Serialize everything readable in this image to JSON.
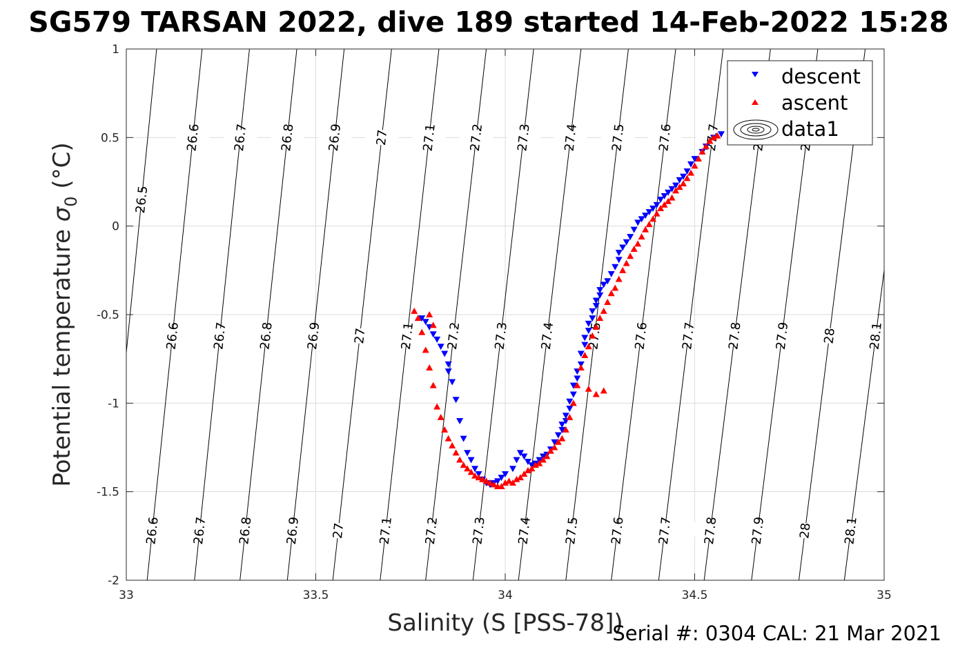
{
  "title": "SG579 TARSAN 2022, dive 189 started 14-Feb-2022 15:28",
  "footer": "Serial #: 0304  CAL: 21 Mar 2021",
  "chart_data": {
    "type": "scatter",
    "xlabel": "Salinity (S [PSS-78])",
    "ylabel_main": "Potential temperature ",
    "ylabel_sigma": "σ",
    "ylabel_sub": "0",
    "ylabel_unit": " (°C)",
    "xlim": [
      33,
      35
    ],
    "ylim": [
      -2,
      1
    ],
    "x_ticks": [
      {
        "value": 33,
        "label": "33"
      },
      {
        "value": 33.5,
        "label": "33.5"
      },
      {
        "value": 34,
        "label": "34"
      },
      {
        "value": 34.5,
        "label": "34.5"
      },
      {
        "value": 35,
        "label": "35"
      }
    ],
    "y_ticks": [
      {
        "value": -2,
        "label": "-2"
      },
      {
        "value": -1.5,
        "label": "-1.5"
      },
      {
        "value": -1,
        "label": "-1"
      },
      {
        "value": -0.5,
        "label": "-0.5"
      },
      {
        "value": 0,
        "label": "0"
      },
      {
        "value": 0.5,
        "label": "0.5"
      },
      {
        "value": 1,
        "label": "1"
      }
    ],
    "grid": true,
    "legend_position": "top-right",
    "legend": [
      {
        "name": "descent",
        "marker": "triangle-down",
        "color": "#0000ff"
      },
      {
        "name": "ascent",
        "marker": "triangle-up",
        "color": "#ff0000"
      },
      {
        "name": "data1",
        "marker": "contour-ellipse",
        "color": "#000000"
      }
    ],
    "density_contours": {
      "levels": [
        "26.5",
        "26.6",
        "26.7",
        "26.8",
        "26.9",
        "27",
        "27.1",
        "27.2",
        "27.3",
        "27.4",
        "27.5",
        "27.6",
        "27.7",
        "27.8",
        "27.9",
        "28",
        "28.1"
      ],
      "lines": [
        {
          "label": "26.5",
          "s_bottom": 32.94,
          "s_top": 33.08
        },
        {
          "label": "26.6",
          "s_bottom": 33.055,
          "s_top": 33.2
        },
        {
          "label": "26.7",
          "s_bottom": 33.18,
          "s_top": 33.325
        },
        {
          "label": "26.8",
          "s_bottom": 33.3,
          "s_top": 33.45
        },
        {
          "label": "26.9",
          "s_bottom": 33.425,
          "s_top": 33.575
        },
        {
          "label": "27",
          "s_bottom": 33.545,
          "s_top": 33.7
        },
        {
          "label": "27.1",
          "s_bottom": 33.67,
          "s_top": 33.825
        },
        {
          "label": "27.2",
          "s_bottom": 33.79,
          "s_top": 33.95
        },
        {
          "label": "27.3",
          "s_bottom": 33.915,
          "s_top": 34.075
        },
        {
          "label": "27.4",
          "s_bottom": 34.035,
          "s_top": 34.2
        },
        {
          "label": "27.5",
          "s_bottom": 34.16,
          "s_top": 34.325
        },
        {
          "label": "27.6",
          "s_bottom": 34.28,
          "s_top": 34.45
        },
        {
          "label": "27.7",
          "s_bottom": 34.405,
          "s_top": 34.575
        },
        {
          "label": "27.8",
          "s_bottom": 34.525,
          "s_top": 34.7
        },
        {
          "label": "27.9",
          "s_bottom": 34.65,
          "s_top": 34.825
        },
        {
          "label": "28",
          "s_bottom": 34.775,
          "s_top": 34.95
        },
        {
          "label": "28.1",
          "s_bottom": 34.895,
          "s_top": 35.075
        }
      ],
      "label_rows_theta": [
        0.5,
        -0.62,
        -1.72
      ],
      "extra_label": {
        "label": "26.5",
        "theta": 0.15
      }
    },
    "series": [
      {
        "name": "descent",
        "color": "#0000ff",
        "marker": "triangle-down",
        "x": [
          34.57,
          34.55,
          34.53,
          34.52,
          34.5,
          34.49,
          34.48,
          34.47,
          34.46,
          34.45,
          34.44,
          34.43,
          34.42,
          34.41,
          34.4,
          34.39,
          34.38,
          34.37,
          34.36,
          34.35,
          34.34,
          34.33,
          34.32,
          34.31,
          34.3,
          34.3,
          34.29,
          34.28,
          34.27,
          34.26,
          34.25,
          34.25,
          34.24,
          34.24,
          34.23,
          34.23,
          34.22,
          34.22,
          34.21,
          34.21,
          34.2,
          34.2,
          34.19,
          34.19,
          34.18,
          34.18,
          34.17,
          34.17,
          34.16,
          34.16,
          34.15,
          34.15,
          34.14,
          34.13,
          34.12,
          34.11,
          34.1,
          34.09,
          34.08,
          34.07,
          34.06,
          34.05,
          34.04,
          34.03,
          34.02,
          34.0,
          33.99,
          33.98,
          33.97,
          33.96,
          33.95,
          33.94,
          33.93,
          33.92,
          33.91,
          33.9,
          33.89,
          33.88,
          33.87,
          33.86,
          33.85,
          33.85,
          33.84,
          33.83,
          33.82,
          33.81,
          33.8,
          33.79,
          33.78
        ],
        "y": [
          0.52,
          0.5,
          0.45,
          0.42,
          0.38,
          0.35,
          0.31,
          0.28,
          0.26,
          0.23,
          0.21,
          0.19,
          0.17,
          0.15,
          0.12,
          0.1,
          0.08,
          0.06,
          0.04,
          0.02,
          -0.02,
          -0.06,
          -0.09,
          -0.12,
          -0.15,
          -0.19,
          -0.23,
          -0.27,
          -0.31,
          -0.33,
          -0.36,
          -0.39,
          -0.42,
          -0.45,
          -0.48,
          -0.52,
          -0.55,
          -0.59,
          -0.63,
          -0.67,
          -0.72,
          -0.78,
          -0.82,
          -0.86,
          -0.9,
          -0.95,
          -0.99,
          -1.03,
          -1.07,
          -1.1,
          -1.12,
          -1.15,
          -1.18,
          -1.22,
          -1.26,
          -1.29,
          -1.3,
          -1.32,
          -1.34,
          -1.35,
          -1.33,
          -1.3,
          -1.28,
          -1.32,
          -1.37,
          -1.4,
          -1.42,
          -1.44,
          -1.45,
          -1.46,
          -1.45,
          -1.43,
          -1.4,
          -1.37,
          -1.32,
          -1.28,
          -1.2,
          -1.1,
          -0.98,
          -0.88,
          -0.82,
          -0.78,
          -0.72,
          -0.68,
          -0.64,
          -0.61,
          -0.57,
          -0.54,
          -0.52
        ]
      },
      {
        "name": "ascent",
        "color": "#ff0000",
        "marker": "triangle-up",
        "x": [
          34.56,
          34.55,
          34.54,
          34.53,
          34.52,
          34.51,
          34.5,
          34.49,
          34.48,
          34.47,
          34.46,
          34.45,
          34.44,
          34.43,
          34.42,
          34.41,
          34.4,
          34.39,
          34.38,
          34.37,
          34.36,
          34.35,
          34.34,
          34.33,
          34.32,
          34.31,
          34.3,
          34.29,
          34.28,
          34.27,
          34.26,
          34.25,
          34.24,
          34.23,
          34.22,
          34.21,
          34.2,
          34.19,
          34.18,
          34.17,
          34.16,
          34.15,
          34.14,
          34.13,
          34.12,
          34.11,
          34.1,
          34.09,
          34.08,
          34.07,
          34.06,
          34.05,
          34.04,
          34.03,
          34.02,
          34.01,
          34.0,
          33.99,
          33.98,
          33.97,
          33.96,
          33.95,
          33.94,
          33.93,
          33.92,
          33.91,
          33.9,
          33.89,
          33.88,
          33.87,
          33.86,
          33.85,
          33.84,
          33.83,
          33.82,
          33.81,
          33.8,
          33.79,
          33.78,
          33.77,
          33.76,
          33.8,
          33.81,
          34.22,
          34.24,
          34.26
        ],
        "y": [
          0.51,
          0.5,
          0.48,
          0.45,
          0.42,
          0.38,
          0.34,
          0.3,
          0.27,
          0.24,
          0.22,
          0.2,
          0.16,
          0.14,
          0.12,
          0.1,
          0.07,
          0.04,
          0.01,
          -0.02,
          -0.06,
          -0.1,
          -0.13,
          -0.17,
          -0.21,
          -0.25,
          -0.3,
          -0.35,
          -0.38,
          -0.43,
          -0.48,
          -0.52,
          -0.57,
          -0.62,
          -0.68,
          -0.73,
          -0.8,
          -0.9,
          -1.0,
          -1.08,
          -1.15,
          -1.2,
          -1.22,
          -1.25,
          -1.27,
          -1.3,
          -1.32,
          -1.34,
          -1.35,
          -1.37,
          -1.38,
          -1.4,
          -1.42,
          -1.43,
          -1.45,
          -1.44,
          -1.45,
          -1.47,
          -1.47,
          -1.46,
          -1.45,
          -1.44,
          -1.43,
          -1.42,
          -1.41,
          -1.39,
          -1.37,
          -1.35,
          -1.32,
          -1.28,
          -1.24,
          -1.2,
          -1.15,
          -1.08,
          -1.02,
          -0.9,
          -0.8,
          -0.7,
          -0.6,
          -0.52,
          -0.48,
          -0.5,
          -0.56,
          -0.92,
          -0.95,
          -0.93
        ]
      }
    ]
  }
}
